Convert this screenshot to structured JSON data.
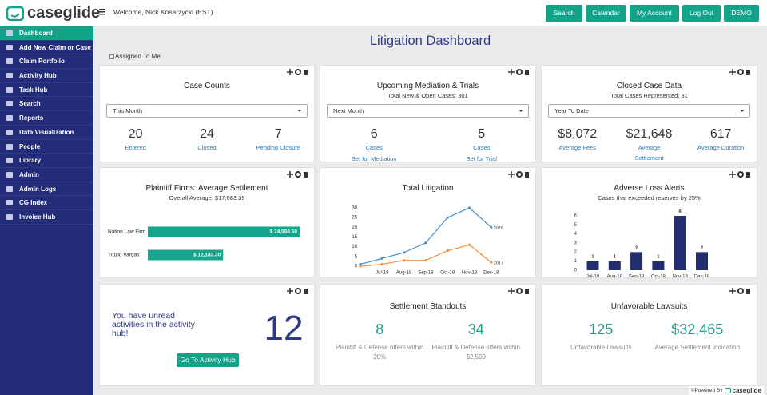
{
  "header": {
    "logo": "caseglide",
    "welcome": "Welcome, Nick Kosarzycki (EST)",
    "buttons": [
      "Search",
      "Calendar",
      "My Account",
      "Log Out",
      "DEMO"
    ]
  },
  "sidebar": [
    "Dashboard",
    "Add New Claim or Case",
    "Claim Portfolio",
    "Activity Hub",
    "Task Hub",
    "Search",
    "Reports",
    "Data Visualization",
    "People",
    "Library",
    "Admin",
    "Admin Logs",
    "CG Index",
    "Invoice Hub"
  ],
  "page": {
    "title": "Litigation Dashboard",
    "filter": "Assigned To Me"
  },
  "widgets": {
    "case_counts": {
      "title": "Case Counts",
      "select": "This Month",
      "stats": [
        {
          "value": "20",
          "label": "Entered"
        },
        {
          "value": "24",
          "label": "Closed"
        },
        {
          "value": "7",
          "label": "Pending Closure"
        }
      ]
    },
    "mediation": {
      "title": "Upcoming Mediation & Trials",
      "subtitle": "Total New & Open Cases: 301",
      "select": "Next Month",
      "stats": [
        {
          "value": "6",
          "label": "Cases",
          "link": "Set for Mediation"
        },
        {
          "value": "5",
          "label": "Cases",
          "link": "Set for Trial"
        }
      ]
    },
    "closed_cases": {
      "title": "Closed Case Data",
      "subtitle": "Total Cases Represented: 31",
      "select": "Year To Date",
      "stats": [
        {
          "value": "$8,072",
          "label": "Average Fees"
        },
        {
          "value": "$21,648",
          "label": "Average Settlement"
        },
        {
          "value": "617",
          "label": "Average Duration"
        }
      ]
    },
    "plaintiff_firms": {
      "title": "Plaintiff Firms: Average Settlement",
      "subtitle": "Overall Average: $17,683.39",
      "chart": {
        "type": "bar",
        "horizontal": true,
        "categories": [
          "Nation Law Firm",
          "Trujilo Vargas"
        ],
        "values": [
          24558.5,
          12183.3
        ],
        "value_labels": [
          "$ 24,558.50",
          "$ 12,183.30"
        ],
        "color": "#14a58c"
      }
    },
    "total_litigation": {
      "title": "Total Litigation",
      "chart": {
        "type": "line",
        "categories": [
          null,
          "Jul-18",
          "Aug-18",
          "Sep-18",
          "Oct-18",
          "Nov-18",
          "Dec-18"
        ],
        "series": [
          {
            "name": "2018",
            "color": "#4a90c8",
            "values": [
              1,
              4,
              7,
              12,
              25,
              30,
              20
            ]
          },
          {
            "name": "2017",
            "color": "#f0913a",
            "values": [
              0,
              1,
              3,
              3,
              8,
              11,
              2
            ]
          }
        ],
        "ylim": [
          0,
          30
        ],
        "yticks": [
          0,
          5,
          10,
          15,
          20,
          25,
          30
        ]
      }
    },
    "adverse_loss": {
      "title": "Adverse Loss Alerts",
      "subtitle": "Cases that exceeded reserves by 25%",
      "chart": {
        "type": "bar",
        "categories": [
          "Jul-18",
          "Aug-18",
          "Sep-18",
          "Oct-18",
          "Nov-18",
          "Dec-18"
        ],
        "values": [
          1,
          1,
          2,
          1,
          6,
          2
        ],
        "color": "#232d6e",
        "ylim": [
          0,
          6
        ],
        "yticks": [
          0,
          1,
          2,
          3,
          4,
          5,
          6
        ]
      }
    },
    "activity": {
      "message": "You have unread activities in the activity hub!",
      "count": "12",
      "button": "Go To Activity Hub"
    },
    "settlement_standouts": {
      "title": "Settlement Standouts",
      "stats": [
        {
          "value": "8",
          "label": "Plaintiff & Defense offers within 20%"
        },
        {
          "value": "34",
          "label": "Plaintiff & Defense offers within $2,500"
        }
      ]
    },
    "unfavorable_lawsuits": {
      "title": "Unfavorable Lawsuits",
      "stats": [
        {
          "value": "125",
          "label": "Unfavorable Lawsuits"
        },
        {
          "value": "$32,465",
          "label": "Average Settlement Indication"
        }
      ]
    }
  },
  "footer": {
    "text": "©Powered By",
    "logo": "caseglide"
  }
}
